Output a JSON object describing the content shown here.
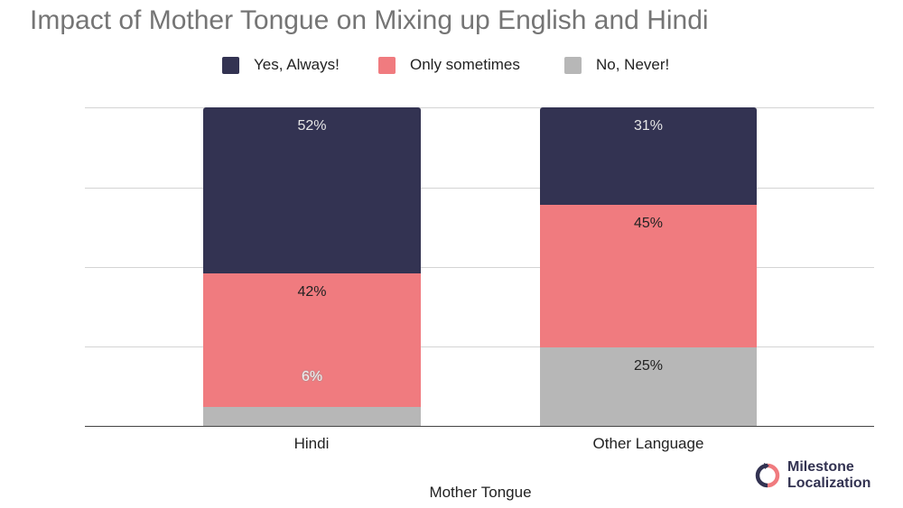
{
  "title": "Impact of Mother Tongue on Mixing up English and Hindi",
  "legend": [
    {
      "label": "Yes, Always!",
      "color": "#333352"
    },
    {
      "label": "Only sometimes",
      "color": "#f07b7f"
    },
    {
      "label": "No, Never!",
      "color": "#b7b7b7"
    }
  ],
  "x_axis": {
    "label": "Mother Tongue",
    "ticks": [
      "Hindi",
      "Other Language"
    ]
  },
  "bars": [
    {
      "category": "Hindi",
      "segments": [
        {
          "series": "Yes, Always!",
          "value": 52,
          "label": "52%"
        },
        {
          "series": "Only sometimes",
          "value": 42,
          "label": "42%"
        },
        {
          "series": "No, Never!",
          "value": 6,
          "label": "6%"
        }
      ]
    },
    {
      "category": "Other Language",
      "segments": [
        {
          "series": "Yes, Always!",
          "value": 31,
          "label": "31%"
        },
        {
          "series": "Only sometimes",
          "value": 45,
          "label": "45%"
        },
        {
          "series": "No, Never!",
          "value": 25,
          "label": "25%"
        }
      ]
    }
  ],
  "logo": {
    "line1": "Milestone",
    "line2": "Localization"
  },
  "chart_data": {
    "type": "bar",
    "stacked": true,
    "title": "Impact of Mother Tongue on Mixing up English and Hindi",
    "xlabel": "Mother Tongue",
    "ylabel": "",
    "categories": [
      "Hindi",
      "Other Language"
    ],
    "series": [
      {
        "name": "Yes, Always!",
        "color": "#333352",
        "values": [
          52,
          31
        ]
      },
      {
        "name": "Only sometimes",
        "color": "#f07b7f",
        "values": [
          42,
          45
        ]
      },
      {
        "name": "No, Never!",
        "color": "#b7b7b7",
        "values": [
          6,
          25
        ]
      }
    ],
    "ylim": [
      0,
      100
    ],
    "y_unit": "%",
    "grid": true,
    "legend_position": "top",
    "data_labels": true
  }
}
